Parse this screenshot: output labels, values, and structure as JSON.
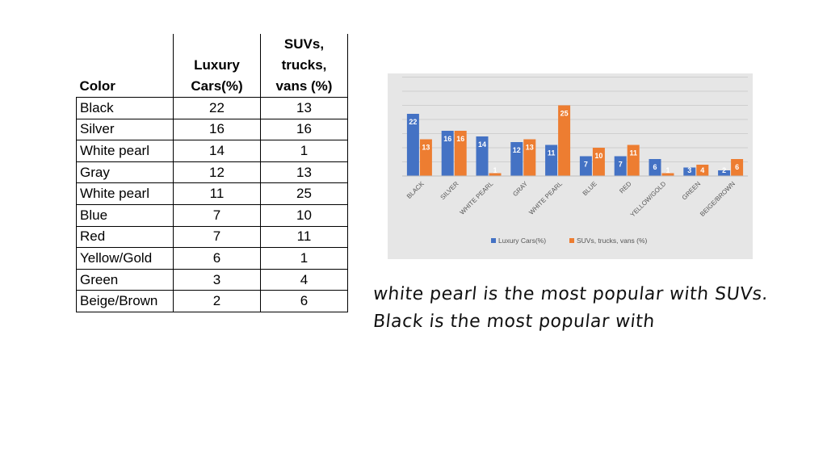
{
  "table": {
    "headers": {
      "color": "Color",
      "luxury": [
        "Luxury",
        "Cars(%)"
      ],
      "suv": [
        "SUVs,",
        "trucks,",
        "vans (%)"
      ]
    },
    "rows": [
      {
        "color": "Black",
        "luxury": "22",
        "suv": "13"
      },
      {
        "color": "Silver",
        "luxury": "16",
        "suv": "16"
      },
      {
        "color": "White pearl",
        "luxury": "14",
        "suv": "1"
      },
      {
        "color": "Gray",
        "luxury": "12",
        "suv": "13"
      },
      {
        "color": "White pearl",
        "luxury": "11",
        "suv": "25"
      },
      {
        "color": "Blue",
        "luxury": "7",
        "suv": "10"
      },
      {
        "color": "Red",
        "luxury": "7",
        "suv": "11"
      },
      {
        "color": "Yellow/Gold",
        "luxury": "6",
        "suv": "1"
      },
      {
        "color": "Green",
        "luxury": "3",
        "suv": "4"
      },
      {
        "color": "Beige/Brown",
        "luxury": "2",
        "suv": "6"
      }
    ]
  },
  "chart_data": {
    "type": "bar",
    "categories": [
      "BLACK",
      "SILVER",
      "WHITE PEARL",
      "GRAY",
      "WHITE PEARL",
      "BLUE",
      "RED",
      "YELLOW/GOLD",
      "GREEN",
      "BEIGE/BROWN"
    ],
    "series": [
      {
        "name": "Luxury Cars(%)",
        "values": [
          22,
          16,
          14,
          12,
          11,
          7,
          7,
          6,
          3,
          2
        ],
        "color": "#4472c4"
      },
      {
        "name": "SUVs, trucks, vans (%)",
        "values": [
          13,
          16,
          1,
          13,
          25,
          10,
          11,
          1,
          4,
          6
        ],
        "color": "#ed7d31"
      }
    ],
    "ylim": [
      0,
      35
    ],
    "grid": true,
    "legend": "bottom",
    "title": "",
    "xlabel": "",
    "ylabel": ""
  },
  "notes": [
    "white pearl is the most popular with SUVs.",
    "Black  is the most popular with"
  ]
}
